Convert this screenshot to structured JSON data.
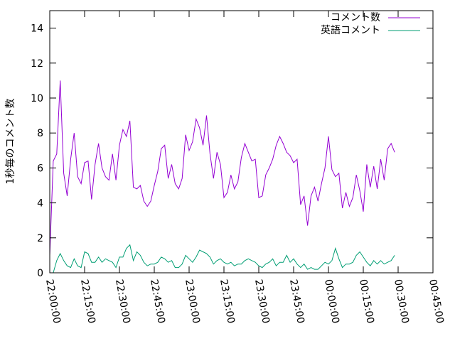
{
  "chart_data": {
    "type": "line",
    "title": "",
    "xlabel": "",
    "ylabel": "1秒毎のコメント数",
    "ylim": [
      0,
      15
    ],
    "yticks": [
      "0",
      "2",
      "4",
      "6",
      "8",
      "10",
      "12",
      "14"
    ],
    "xticks": [
      "22:00:00",
      "22:15:00",
      "22:30:00",
      "22:45:00",
      "23:00:00",
      "23:15:00",
      "23:30:00",
      "23:45:00",
      "00:00:00",
      "00:15:00",
      "00:30:00",
      "00:45:00"
    ],
    "x_range_minutes": [
      0,
      165
    ],
    "grid": false,
    "legend_position": "top-right",
    "series": [
      {
        "name": "コメント数",
        "color": "#9400d3",
        "points": [
          [
            0,
            1.0
          ],
          [
            1.5,
            6.4
          ],
          [
            3,
            6.8
          ],
          [
            4.5,
            11.0
          ],
          [
            6,
            5.7
          ],
          [
            7.5,
            4.4
          ],
          [
            9,
            6.5
          ],
          [
            10.5,
            8.0
          ],
          [
            12,
            5.5
          ],
          [
            13.5,
            5.1
          ],
          [
            15,
            6.3
          ],
          [
            16.5,
            6.4
          ],
          [
            18,
            4.2
          ],
          [
            19.5,
            6.2
          ],
          [
            21,
            7.4
          ],
          [
            22.5,
            6.0
          ],
          [
            24,
            5.5
          ],
          [
            25.5,
            5.3
          ],
          [
            27,
            6.8
          ],
          [
            28.5,
            5.3
          ],
          [
            30,
            7.3
          ],
          [
            31.5,
            8.2
          ],
          [
            33,
            7.8
          ],
          [
            34.5,
            8.7
          ],
          [
            36,
            4.9
          ],
          [
            37.5,
            4.8
          ],
          [
            39,
            5.0
          ],
          [
            40.5,
            4.1
          ],
          [
            42,
            3.8
          ],
          [
            43.5,
            4.1
          ],
          [
            45,
            5.0
          ],
          [
            46.5,
            5.8
          ],
          [
            48,
            7.1
          ],
          [
            49.5,
            7.3
          ],
          [
            51,
            5.4
          ],
          [
            52.5,
            6.2
          ],
          [
            54,
            5.1
          ],
          [
            55.5,
            4.8
          ],
          [
            57,
            5.4
          ],
          [
            58.5,
            7.9
          ],
          [
            60,
            7.0
          ],
          [
            61.5,
            7.5
          ],
          [
            63,
            8.8
          ],
          [
            64.5,
            8.3
          ],
          [
            66,
            7.3
          ],
          [
            67.5,
            9.0
          ],
          [
            69,
            6.8
          ],
          [
            70.5,
            5.4
          ],
          [
            72,
            6.9
          ],
          [
            73.5,
            6.2
          ],
          [
            75,
            4.3
          ],
          [
            76.5,
            4.6
          ],
          [
            78,
            5.6
          ],
          [
            79.5,
            4.8
          ],
          [
            81,
            5.2
          ],
          [
            82.5,
            6.6
          ],
          [
            84,
            7.4
          ],
          [
            85.5,
            6.9
          ],
          [
            87,
            6.4
          ],
          [
            88.5,
            6.5
          ],
          [
            90,
            4.3
          ],
          [
            91.5,
            4.4
          ],
          [
            93,
            5.6
          ],
          [
            94.5,
            6.0
          ],
          [
            96,
            6.5
          ],
          [
            97.5,
            7.3
          ],
          [
            99,
            7.8
          ],
          [
            100.5,
            7.4
          ],
          [
            102,
            6.9
          ],
          [
            103.5,
            6.7
          ],
          [
            105,
            6.3
          ],
          [
            106.5,
            6.5
          ],
          [
            108,
            3.9
          ],
          [
            109.5,
            4.4
          ],
          [
            111,
            2.7
          ],
          [
            112.5,
            4.4
          ],
          [
            114,
            4.9
          ],
          [
            115.5,
            4.1
          ],
          [
            117,
            5.1
          ],
          [
            118.5,
            6.0
          ],
          [
            120,
            7.8
          ],
          [
            121.5,
            5.9
          ],
          [
            123,
            5.5
          ],
          [
            124.5,
            5.7
          ],
          [
            126,
            3.7
          ],
          [
            127.5,
            4.6
          ],
          [
            129,
            3.8
          ],
          [
            130.5,
            4.3
          ],
          [
            132,
            5.6
          ],
          [
            133.5,
            4.7
          ],
          [
            135,
            3.5
          ],
          [
            136.5,
            6.2
          ],
          [
            138,
            4.9
          ],
          [
            139.5,
            6.1
          ],
          [
            141,
            4.8
          ],
          [
            142.5,
            6.5
          ],
          [
            144,
            5.3
          ],
          [
            145.5,
            7.1
          ],
          [
            147,
            7.4
          ],
          [
            148.5,
            6.9
          ]
        ]
      },
      {
        "name": "英語コメント",
        "color": "#009e73",
        "points": [
          [
            0,
            0.0
          ],
          [
            1.5,
            0.0
          ],
          [
            3,
            0.7
          ],
          [
            4.5,
            1.1
          ],
          [
            6,
            0.7
          ],
          [
            7.5,
            0.4
          ],
          [
            9,
            0.3
          ],
          [
            10.5,
            0.8
          ],
          [
            12,
            0.4
          ],
          [
            13.5,
            0.3
          ],
          [
            15,
            1.2
          ],
          [
            16.5,
            1.1
          ],
          [
            18,
            0.6
          ],
          [
            19.5,
            0.6
          ],
          [
            21,
            0.9
          ],
          [
            22.5,
            0.6
          ],
          [
            24,
            0.8
          ],
          [
            25.5,
            0.7
          ],
          [
            27,
            0.6
          ],
          [
            28.5,
            0.3
          ],
          [
            30,
            0.9
          ],
          [
            31.5,
            0.9
          ],
          [
            33,
            1.4
          ],
          [
            34.5,
            1.6
          ],
          [
            36,
            0.7
          ],
          [
            37.5,
            1.2
          ],
          [
            39,
            1.0
          ],
          [
            40.5,
            0.6
          ],
          [
            42,
            0.4
          ],
          [
            43.5,
            0.5
          ],
          [
            45,
            0.5
          ],
          [
            46.5,
            0.6
          ],
          [
            48,
            0.9
          ],
          [
            49.5,
            0.8
          ],
          [
            51,
            0.6
          ],
          [
            52.5,
            0.7
          ],
          [
            54,
            0.3
          ],
          [
            55.5,
            0.3
          ],
          [
            57,
            0.5
          ],
          [
            58.5,
            1.0
          ],
          [
            60,
            0.8
          ],
          [
            61.5,
            0.6
          ],
          [
            63,
            0.9
          ],
          [
            64.5,
            1.3
          ],
          [
            66,
            1.2
          ],
          [
            67.5,
            1.1
          ],
          [
            69,
            0.9
          ],
          [
            70.5,
            0.5
          ],
          [
            72,
            0.7
          ],
          [
            73.5,
            0.8
          ],
          [
            75,
            0.6
          ],
          [
            76.5,
            0.5
          ],
          [
            78,
            0.6
          ],
          [
            79.5,
            0.4
          ],
          [
            81,
            0.5
          ],
          [
            82.5,
            0.5
          ],
          [
            84,
            0.7
          ],
          [
            85.5,
            0.8
          ],
          [
            87,
            0.7
          ],
          [
            88.5,
            0.6
          ],
          [
            90,
            0.4
          ],
          [
            91.5,
            0.3
          ],
          [
            93,
            0.5
          ],
          [
            94.5,
            0.6
          ],
          [
            96,
            0.8
          ],
          [
            97.5,
            0.4
          ],
          [
            99,
            0.6
          ],
          [
            100.5,
            0.6
          ],
          [
            102,
            1.0
          ],
          [
            103.5,
            0.6
          ],
          [
            105,
            0.8
          ],
          [
            106.5,
            0.5
          ],
          [
            108,
            0.3
          ],
          [
            109.5,
            0.5
          ],
          [
            111,
            0.2
          ],
          [
            112.5,
            0.3
          ],
          [
            114,
            0.2
          ],
          [
            115.5,
            0.2
          ],
          [
            117,
            0.4
          ],
          [
            118.5,
            0.6
          ],
          [
            120,
            0.5
          ],
          [
            121.5,
            0.7
          ],
          [
            123,
            1.4
          ],
          [
            124.5,
            0.8
          ],
          [
            126,
            0.3
          ],
          [
            127.5,
            0.5
          ],
          [
            129,
            0.5
          ],
          [
            130.5,
            0.6
          ],
          [
            132,
            1.0
          ],
          [
            133.5,
            1.2
          ],
          [
            135,
            0.9
          ],
          [
            136.5,
            0.6
          ],
          [
            138,
            0.4
          ],
          [
            139.5,
            0.7
          ],
          [
            141,
            0.5
          ],
          [
            142.5,
            0.7
          ],
          [
            144,
            0.5
          ],
          [
            145.5,
            0.6
          ],
          [
            147,
            0.7
          ],
          [
            148.5,
            1.0
          ]
        ]
      }
    ]
  }
}
